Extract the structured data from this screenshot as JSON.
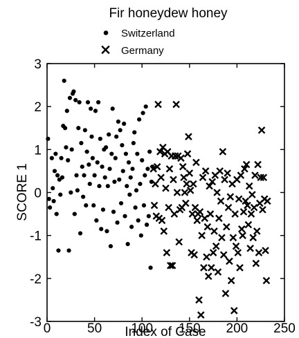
{
  "chart_data": {
    "type": "scatter",
    "title": "Fir honeydew honey",
    "xlabel": "Index of Case",
    "ylabel": "SCORE 1",
    "xlim": [
      0,
      250
    ],
    "ylim": [
      -3,
      3
    ],
    "xticks": [
      0,
      50,
      100,
      150,
      200,
      250
    ],
    "yticks": [
      -3,
      -2,
      -1,
      0,
      1,
      2,
      3
    ],
    "grid": false,
    "legend_position": "top-center",
    "marker_color": "#000000",
    "series": [
      {
        "name": "Switzerland",
        "marker": "dot",
        "points": [
          [
            1,
            1.25
          ],
          [
            2,
            -0.15
          ],
          [
            3,
            -0.35
          ],
          [
            5,
            0.8
          ],
          [
            6,
            0.1
          ],
          [
            7,
            -0.2
          ],
          [
            8,
            0.5
          ],
          [
            9,
            0.9
          ],
          [
            10,
            -0.5
          ],
          [
            11,
            0.4
          ],
          [
            12,
            -1.35
          ],
          [
            13,
            0.3
          ],
          [
            14,
            -0.05
          ],
          [
            15,
            0.8
          ],
          [
            16,
            0.35
          ],
          [
            17,
            1.55
          ],
          [
            18,
            2.6
          ],
          [
            19,
            1.5
          ],
          [
            20,
            1.05
          ],
          [
            21,
            1.9
          ],
          [
            22,
            0.75
          ],
          [
            23,
            -1.35
          ],
          [
            24,
            2.2
          ],
          [
            25,
            0.0
          ],
          [
            26,
            1.0
          ],
          [
            27,
            2.3
          ],
          [
            28,
            2.35
          ],
          [
            29,
            -0.5
          ],
          [
            30,
            2.15
          ],
          [
            31,
            0.4
          ],
          [
            32,
            0.05
          ],
          [
            33,
            1.5
          ],
          [
            34,
            2.1
          ],
          [
            35,
            -0.95
          ],
          [
            36,
            1.15
          ],
          [
            37,
            0.6
          ],
          [
            38,
            -0.1
          ],
          [
            39,
            0.4
          ],
          [
            40,
            1.45
          ],
          [
            41,
            -0.3
          ],
          [
            42,
            0.95
          ],
          [
            43,
            2.1
          ],
          [
            44,
            0.65
          ],
          [
            45,
            0.2
          ],
          [
            46,
            1.95
          ],
          [
            47,
            1.3
          ],
          [
            48,
            0.8
          ],
          [
            49,
            -0.3
          ],
          [
            50,
            0.4
          ],
          [
            51,
            1.9
          ],
          [
            52,
            -0.65
          ],
          [
            53,
            0.7
          ],
          [
            54,
            2.1
          ],
          [
            55,
            0.15
          ],
          [
            56,
            1.25
          ],
          [
            57,
            -0.85
          ],
          [
            58,
            0.6
          ],
          [
            59,
            -0.4
          ],
          [
            60,
            1.0
          ],
          [
            61,
            0.35
          ],
          [
            62,
            1.05
          ],
          [
            63,
            -0.9
          ],
          [
            64,
            0.15
          ],
          [
            65,
            1.35
          ],
          [
            66,
            0.55
          ],
          [
            67,
            -1.25
          ],
          [
            68,
            0.9
          ],
          [
            69,
            1.95
          ],
          [
            70,
            -0.45
          ],
          [
            71,
            0.25
          ],
          [
            72,
            0.8
          ],
          [
            73,
            1.3
          ],
          [
            74,
            -0.7
          ],
          [
            75,
            1.65
          ],
          [
            76,
            0.3
          ],
          [
            77,
            1.45
          ],
          [
            78,
            -0.25
          ],
          [
            79,
            1.1
          ],
          [
            80,
            0.5
          ],
          [
            81,
            1.6
          ],
          [
            82,
            -0.55
          ],
          [
            83,
            0.9
          ],
          [
            84,
            0.15
          ],
          [
            85,
            -1.2
          ],
          [
            86,
            0.7
          ],
          [
            87,
            -0.05
          ],
          [
            88,
            0.35
          ],
          [
            89,
            -0.8
          ],
          [
            90,
            0.55
          ],
          [
            91,
            1.15
          ],
          [
            92,
            1.4
          ],
          [
            93,
            -0.35
          ],
          [
            94,
            0.05
          ],
          [
            95,
            0.9
          ],
          [
            96,
            -0.65
          ],
          [
            97,
            1.7
          ],
          [
            98,
            0.2
          ],
          [
            99,
            -1.0
          ],
          [
            100,
            0.75
          ],
          [
            101,
            1.85
          ],
          [
            102,
            -0.3
          ],
          [
            103,
            0.4
          ],
          [
            104,
            2.0
          ],
          [
            105,
            -0.75
          ],
          [
            106,
            0.55
          ],
          [
            107,
            -0.55
          ],
          [
            108,
            0.95
          ],
          [
            109,
            -1.75
          ],
          [
            110,
            0.25
          ],
          [
            111,
            0.6
          ]
        ]
      },
      {
        "name": "Germany",
        "marker": "x",
        "points": [
          [
            112,
            0.55
          ],
          [
            113,
            -0.3
          ],
          [
            114,
            0.2
          ],
          [
            115,
            -0.55
          ],
          [
            116,
            0.6
          ],
          [
            117,
            2.05
          ],
          [
            118,
            -0.6
          ],
          [
            119,
            0.95
          ],
          [
            120,
            0.35
          ],
          [
            121,
            -0.65
          ],
          [
            122,
            1.05
          ],
          [
            123,
            -0.9
          ],
          [
            124,
            0.9
          ],
          [
            125,
            0.1
          ],
          [
            126,
            -1.4
          ],
          [
            127,
            0.95
          ],
          [
            128,
            -0.35
          ],
          [
            129,
            0.55
          ],
          [
            130,
            -1.7
          ],
          [
            131,
            0.85
          ],
          [
            132,
            -1.7
          ],
          [
            133,
            0.3
          ],
          [
            134,
            -0.5
          ],
          [
            135,
            0.85
          ],
          [
            136,
            2.05
          ],
          [
            137,
            0.0
          ],
          [
            138,
            0.85
          ],
          [
            139,
            -1.15
          ],
          [
            140,
            -0.4
          ],
          [
            141,
            0.8
          ],
          [
            142,
            -0.35
          ],
          [
            143,
            0.6
          ],
          [
            144,
            0.35
          ],
          [
            145,
            0.0
          ],
          [
            146,
            -0.25
          ],
          [
            147,
            0.2
          ],
          [
            148,
            0.9
          ],
          [
            149,
            1.3
          ],
          [
            150,
            0.45
          ],
          [
            151,
            0.05
          ],
          [
            152,
            -1.4
          ],
          [
            153,
            -0.5
          ],
          [
            154,
            0.2
          ],
          [
            155,
            -1.45
          ],
          [
            156,
            -0.35
          ],
          [
            157,
            0.7
          ],
          [
            158,
            -0.65
          ],
          [
            159,
            -0.5
          ],
          [
            160,
            -2.5
          ],
          [
            161,
            -0.45
          ],
          [
            162,
            -2.85
          ],
          [
            163,
            -1.0
          ],
          [
            164,
            0.35
          ],
          [
            165,
            -1.75
          ],
          [
            166,
            -0.6
          ],
          [
            167,
            0.5
          ],
          [
            168,
            -1.5
          ],
          [
            169,
            -0.8
          ],
          [
            170,
            -1.95
          ],
          [
            171,
            0.15
          ],
          [
            172,
            -0.5
          ],
          [
            173,
            -1.75
          ],
          [
            174,
            0.25
          ],
          [
            175,
            -1.4
          ],
          [
            176,
            -0.9
          ],
          [
            177,
            0.4
          ],
          [
            178,
            -1.25
          ],
          [
            179,
            0.0
          ],
          [
            180,
            -1.85
          ],
          [
            181,
            -0.6
          ],
          [
            182,
            0.5
          ],
          [
            183,
            -0.2
          ],
          [
            184,
            -1.05
          ],
          [
            185,
            0.95
          ],
          [
            186,
            -1.45
          ],
          [
            187,
            0.3
          ],
          [
            188,
            -2.35
          ],
          [
            189,
            -0.8
          ],
          [
            190,
            0.45
          ],
          [
            191,
            -0.35
          ],
          [
            192,
            -1.6
          ],
          [
            193,
            -0.1
          ],
          [
            194,
            -2.05
          ],
          [
            195,
            0.2
          ],
          [
            196,
            -1.05
          ],
          [
            197,
            -2.75
          ],
          [
            198,
            -0.5
          ],
          [
            199,
            -1.25
          ],
          [
            200,
            0.3
          ],
          [
            201,
            -1.4
          ],
          [
            202,
            -0.15
          ],
          [
            203,
            -1.75
          ],
          [
            204,
            0.4
          ],
          [
            205,
            -0.85
          ],
          [
            206,
            -1.0
          ],
          [
            207,
            -0.45
          ],
          [
            208,
            0.55
          ],
          [
            209,
            -0.2
          ],
          [
            210,
            0.65
          ],
          [
            211,
            -0.3
          ],
          [
            212,
            -0.75
          ],
          [
            213,
            0.15
          ],
          [
            214,
            -1.3
          ],
          [
            215,
            -0.5
          ],
          [
            216,
            -0.05
          ],
          [
            217,
            -1.05
          ],
          [
            218,
            -0.35
          ],
          [
            219,
            0.4
          ],
          [
            220,
            -1.65
          ],
          [
            221,
            -0.9
          ],
          [
            222,
            0.65
          ],
          [
            223,
            -1.4
          ],
          [
            224,
            -0.25
          ],
          [
            225,
            0.35
          ],
          [
            226,
            1.45
          ],
          [
            227,
            -0.4
          ],
          [
            228,
            0.35
          ],
          [
            229,
            -0.15
          ],
          [
            230,
            -1.35
          ],
          [
            231,
            -2.05
          ],
          [
            232,
            -0.2
          ]
        ]
      }
    ]
  }
}
